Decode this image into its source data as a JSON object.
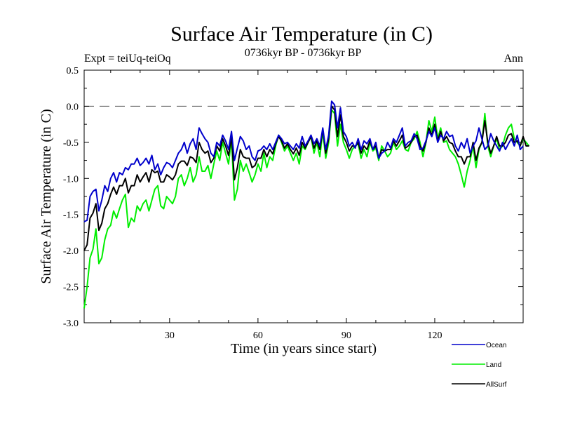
{
  "chart_data": {
    "type": "line",
    "title": "Surface Air Temperature (in C)",
    "subtitle": "0736kyr BP - 0736kyr BP",
    "left_annotation": "Expt = teiUq-teiOq",
    "right_annotation": "Ann",
    "xlabel": "Time (in years since start)",
    "ylabel": "Surface Air Temperature (in C)",
    "xlim": [
      1,
      150
    ],
    "ylim": [
      -3.0,
      0.5
    ],
    "xticks": [
      30,
      60,
      90,
      120
    ],
    "yticks": [
      0.5,
      0.0,
      -0.5,
      -1.0,
      -1.5,
      -2.0,
      -2.5,
      -3.0
    ],
    "ytick_labels": [
      "0.5",
      "0.0",
      "-0.5",
      "-1.0",
      "-1.5",
      "-2.0",
      "-2.5",
      "-3.0"
    ],
    "zero_line": 0.0,
    "legend_position": "bottom-right",
    "series": [
      {
        "name": "Ocean",
        "color": "#0000cc",
        "values": [
          -1.6,
          -1.58,
          -1.25,
          -1.18,
          -1.15,
          -1.45,
          -1.3,
          -1.1,
          -1.18,
          -1.0,
          -0.92,
          -1.05,
          -0.92,
          -0.95,
          -0.85,
          -0.88,
          -0.8,
          -0.8,
          -0.72,
          -0.82,
          -0.78,
          -0.72,
          -0.8,
          -0.68,
          -0.88,
          -0.8,
          -0.95,
          -0.85,
          -0.78,
          -0.8,
          -0.85,
          -0.75,
          -0.65,
          -0.6,
          -0.5,
          -0.65,
          -0.52,
          -0.45,
          -0.6,
          -0.3,
          -0.38,
          -0.45,
          -0.5,
          -0.65,
          -0.7,
          -0.5,
          -0.55,
          -0.4,
          -0.48,
          -0.6,
          -0.35,
          -0.75,
          -0.58,
          -0.42,
          -0.48,
          -0.6,
          -0.55,
          -0.7,
          -0.75,
          -0.62,
          -0.6,
          -0.55,
          -0.6,
          -0.52,
          -0.6,
          -0.5,
          -0.4,
          -0.45,
          -0.52,
          -0.5,
          -0.55,
          -0.6,
          -0.52,
          -0.58,
          -0.42,
          -0.55,
          -0.48,
          -0.4,
          -0.52,
          -0.45,
          -0.55,
          -0.3,
          -0.6,
          -0.4,
          0.07,
          0.02,
          -0.3,
          -0.02,
          -0.35,
          -0.42,
          -0.55,
          -0.5,
          -0.58,
          -0.45,
          -0.6,
          -0.48,
          -0.52,
          -0.45,
          -0.6,
          -0.5,
          -0.72,
          -0.65,
          -0.62,
          -0.5,
          -0.58,
          -0.45,
          -0.5,
          -0.4,
          -0.3,
          -0.55,
          -0.5,
          -0.48,
          -0.38,
          -0.45,
          -0.6,
          -0.58,
          -0.48,
          -0.35,
          -0.42,
          -0.3,
          -0.5,
          -0.4,
          -0.45,
          -0.35,
          -0.42,
          -0.4,
          -0.55,
          -0.62,
          -0.5,
          -0.58,
          -0.45,
          -0.65,
          -0.55,
          -0.48,
          -0.3,
          -0.45,
          -0.6,
          -0.55,
          -0.38,
          -0.48,
          -0.55,
          -0.62,
          -0.5,
          -0.6,
          -0.52,
          -0.45,
          -0.55,
          -0.4,
          -0.6,
          -0.55
        ]
      },
      {
        "name": "Land",
        "color": "#00ee00",
        "values": [
          -2.8,
          -2.5,
          -2.1,
          -1.98,
          -1.7,
          -2.18,
          -2.1,
          -1.85,
          -1.7,
          -1.65,
          -1.45,
          -1.55,
          -1.42,
          -1.3,
          -1.22,
          -1.68,
          -1.55,
          -1.6,
          -1.38,
          -1.45,
          -1.35,
          -1.3,
          -1.45,
          -1.3,
          -1.15,
          -1.1,
          -1.38,
          -1.42,
          -1.25,
          -1.3,
          -1.35,
          -1.25,
          -1.0,
          -0.95,
          -1.1,
          -1.0,
          -0.85,
          -1.05,
          -0.95,
          -0.7,
          -0.9,
          -0.9,
          -0.82,
          -1.0,
          -0.8,
          -0.62,
          -0.75,
          -0.5,
          -0.65,
          -0.8,
          -0.45,
          -1.3,
          -1.15,
          -0.75,
          -0.9,
          -0.8,
          -0.92,
          -1.05,
          -0.95,
          -0.8,
          -0.9,
          -0.65,
          -0.85,
          -0.7,
          -0.75,
          -0.55,
          -0.4,
          -0.5,
          -0.62,
          -0.55,
          -0.65,
          -0.75,
          -0.65,
          -0.8,
          -0.55,
          -0.6,
          -0.5,
          -0.42,
          -0.65,
          -0.5,
          -0.7,
          -0.35,
          -0.72,
          -0.5,
          -0.05,
          -0.1,
          -0.55,
          -0.25,
          -0.5,
          -0.6,
          -0.72,
          -0.6,
          -0.55,
          -0.52,
          -0.72,
          -0.6,
          -0.7,
          -0.5,
          -0.62,
          -0.58,
          -0.75,
          -0.55,
          -0.62,
          -0.7,
          -0.65,
          -0.5,
          -0.6,
          -0.55,
          -0.48,
          -0.6,
          -0.62,
          -0.5,
          -0.45,
          -0.35,
          -0.5,
          -0.7,
          -0.5,
          -0.2,
          -0.35,
          -0.15,
          -0.45,
          -0.3,
          -0.5,
          -0.48,
          -0.6,
          -0.65,
          -0.7,
          -0.8,
          -0.95,
          -1.12,
          -0.9,
          -0.75,
          -0.55,
          -0.85,
          -0.6,
          -0.5,
          -0.1,
          -0.55,
          -0.7,
          -0.55,
          -0.45,
          -0.6,
          -0.55,
          -0.4,
          -0.3,
          -0.25,
          -0.45,
          -0.5,
          -0.55,
          -0.45,
          -0.5,
          -0.55
        ]
      },
      {
        "name": "AllSurf",
        "color": "#000000",
        "values": [
          -2.0,
          -1.92,
          -1.55,
          -1.48,
          -1.35,
          -1.72,
          -1.62,
          -1.42,
          -1.35,
          -1.22,
          -1.12,
          -1.22,
          -1.1,
          -1.1,
          -1.0,
          -1.2,
          -1.1,
          -1.1,
          -0.95,
          -1.05,
          -0.98,
          -0.92,
          -1.05,
          -0.88,
          -0.92,
          -0.9,
          -1.05,
          -1.05,
          -0.95,
          -0.98,
          -1.02,
          -0.95,
          -0.8,
          -0.76,
          -0.76,
          -0.82,
          -0.7,
          -0.72,
          -0.78,
          -0.5,
          -0.6,
          -0.65,
          -0.62,
          -0.78,
          -0.72,
          -0.55,
          -0.62,
          -0.45,
          -0.55,
          -0.68,
          -0.42,
          -1.02,
          -0.85,
          -0.6,
          -0.7,
          -0.72,
          -0.72,
          -0.85,
          -0.82,
          -0.72,
          -0.72,
          -0.6,
          -0.7,
          -0.6,
          -0.66,
          -0.52,
          -0.42,
          -0.48,
          -0.58,
          -0.52,
          -0.6,
          -0.66,
          -0.58,
          -0.68,
          -0.5,
          -0.58,
          -0.5,
          -0.42,
          -0.58,
          -0.48,
          -0.6,
          -0.32,
          -0.65,
          -0.45,
          0.0,
          -0.05,
          -0.42,
          -0.12,
          -0.42,
          -0.5,
          -0.62,
          -0.55,
          -0.56,
          -0.5,
          -0.65,
          -0.55,
          -0.6,
          -0.48,
          -0.6,
          -0.55,
          -0.72,
          -0.6,
          -0.62,
          -0.6,
          -0.6,
          -0.48,
          -0.55,
          -0.48,
          -0.4,
          -0.58,
          -0.55,
          -0.5,
          -0.42,
          -0.4,
          -0.55,
          -0.62,
          -0.5,
          -0.3,
          -0.4,
          -0.25,
          -0.48,
          -0.35,
          -0.48,
          -0.42,
          -0.5,
          -0.52,
          -0.62,
          -0.7,
          -0.7,
          -0.8,
          -0.7,
          -0.7,
          -0.5,
          -0.75,
          -0.58,
          -0.5,
          -0.2,
          -0.5,
          -0.65,
          -0.55,
          -0.42,
          -0.55,
          -0.55,
          -0.5,
          -0.4,
          -0.38,
          -0.5,
          -0.48,
          -0.55,
          -0.42,
          -0.55,
          -0.55
        ]
      }
    ]
  }
}
